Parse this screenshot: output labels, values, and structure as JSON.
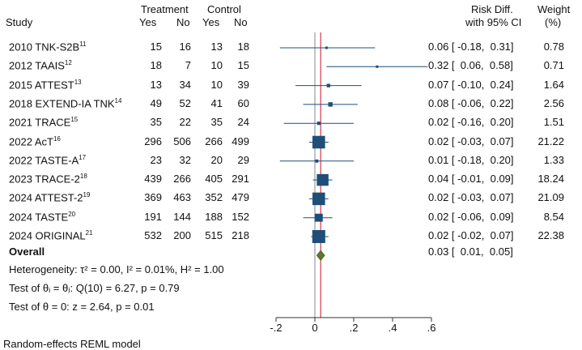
{
  "header": {
    "study": "Study",
    "treatment": "Treatment",
    "control": "Control",
    "yes1": "Yes",
    "no1": "No",
    "yes2": "Yes",
    "no2": "No",
    "effect_line1": "Risk Diff.",
    "effect_line2": "with 95% CI",
    "weight_line1": "Weight",
    "weight_line2": "(%)"
  },
  "chart_data": {
    "type": "forest",
    "xlim": [
      -0.2,
      0.6
    ],
    "xticks": [
      -0.2,
      0,
      0.2,
      0.4,
      0.6
    ],
    "xtick_labels": [
      "-.2",
      "0",
      ".2",
      ".4",
      ".6"
    ],
    "null_line": 0,
    "overall_line": 0.03,
    "studies": [
      {
        "name": "2010 TNK-S2B",
        "sup": "11",
        "t_yes": "15",
        "t_no": "16",
        "c_yes": "13",
        "c_no": "18",
        "est": 0.06,
        "lo": -0.18,
        "hi": 0.31,
        "ci_text": "0.06 [ -0.18,  0.31]",
        "weight": 0.78,
        "weight_text": "0.78"
      },
      {
        "name": "2012 TAAIS",
        "sup": "12",
        "t_yes": "18",
        "t_no": "7",
        "c_yes": "10",
        "c_no": "15",
        "est": 0.32,
        "lo": 0.06,
        "hi": 0.58,
        "ci_text": "0.32 [  0.06,  0.58]",
        "weight": 0.71,
        "weight_text": "0.71"
      },
      {
        "name": "2015 ATTEST",
        "sup": "13",
        "t_yes": "13",
        "t_no": "34",
        "c_yes": "10",
        "c_no": "39",
        "est": 0.07,
        "lo": -0.1,
        "hi": 0.24,
        "ci_text": "0.07 [ -0.10,  0.24]",
        "weight": 1.64,
        "weight_text": "1.64"
      },
      {
        "name": "2018 EXTEND-IA TNK",
        "sup": "14",
        "t_yes": "49",
        "t_no": "52",
        "c_yes": "41",
        "c_no": "60",
        "est": 0.08,
        "lo": -0.06,
        "hi": 0.22,
        "ci_text": "0.08 [ -0.06,  0.22]",
        "weight": 2.56,
        "weight_text": "2.56"
      },
      {
        "name": "2021 TRACE",
        "sup": "15",
        "t_yes": "35",
        "t_no": "22",
        "c_yes": "35",
        "c_no": "24",
        "est": 0.02,
        "lo": -0.16,
        "hi": 0.2,
        "ci_text": "0.02 [ -0.16,  0.20]",
        "weight": 1.51,
        "weight_text": "1.51"
      },
      {
        "name": "2022 AcT",
        "sup": "16",
        "t_yes": "296",
        "t_no": "506",
        "c_yes": "266",
        "c_no": "499",
        "est": 0.02,
        "lo": -0.03,
        "hi": 0.07,
        "ci_text": "0.02 [ -0.03,  0.07]",
        "weight": 21.22,
        "weight_text": "21.22"
      },
      {
        "name": "2022 TASTE-A",
        "sup": "17",
        "t_yes": "23",
        "t_no": "32",
        "c_yes": "20",
        "c_no": "29",
        "est": 0.01,
        "lo": -0.18,
        "hi": 0.2,
        "ci_text": "0.01 [ -0.18,  0.20]",
        "weight": 1.33,
        "weight_text": "1.33"
      },
      {
        "name": "2023 TRACE-2",
        "sup": "18",
        "t_yes": "439",
        "t_no": "266",
        "c_yes": "405",
        "c_no": "291",
        "est": 0.04,
        "lo": -0.01,
        "hi": 0.09,
        "ci_text": "0.04 [ -0.01,  0.09]",
        "weight": 18.24,
        "weight_text": "18.24"
      },
      {
        "name": "2024 ATTEST-2",
        "sup": "19",
        "t_yes": "369",
        "t_no": "463",
        "c_yes": "352",
        "c_no": "479",
        "est": 0.02,
        "lo": -0.03,
        "hi": 0.07,
        "ci_text": "0.02 [ -0.03,  0.07]",
        "weight": 21.09,
        "weight_text": "21.09"
      },
      {
        "name": "2024 TASTE",
        "sup": "20",
        "t_yes": "191",
        "t_no": "144",
        "c_yes": "188",
        "c_no": "152",
        "est": 0.02,
        "lo": -0.06,
        "hi": 0.09,
        "ci_text": "0.02 [ -0.06,  0.09]",
        "weight": 8.54,
        "weight_text": "8.54"
      },
      {
        "name": "2024 ORIGINAL",
        "sup": "21",
        "t_yes": "532",
        "t_no": "200",
        "c_yes": "515",
        "c_no": "218",
        "est": 0.02,
        "lo": -0.02,
        "hi": 0.07,
        "ci_text": "0.02 [ -0.02,  0.07]",
        "weight": 22.38,
        "weight_text": "22.38"
      }
    ],
    "overall": {
      "label": "Overall",
      "est": 0.03,
      "lo": 0.01,
      "hi": 0.05,
      "ci_text": "0.03 [  0.01,  0.05]"
    },
    "colors": {
      "marker": "#1f4e79",
      "ci_line": "#1f4e79",
      "diamond": "#5a7a2e",
      "null_line": "#9a9aa8",
      "overall_line": "#d6334a"
    }
  },
  "notes": {
    "heterogeneity": "Heterogeneity: τ² = 0.00, I² = 0.01%, H² = 1.00",
    "homogeneity": "Test of θᵢ = θⱼ: Q(10) = 6.27, p = 0.79",
    "effect_test": "Test of θ = 0: z = 2.64, p = 0.01",
    "model": "Random-effects REML model"
  }
}
